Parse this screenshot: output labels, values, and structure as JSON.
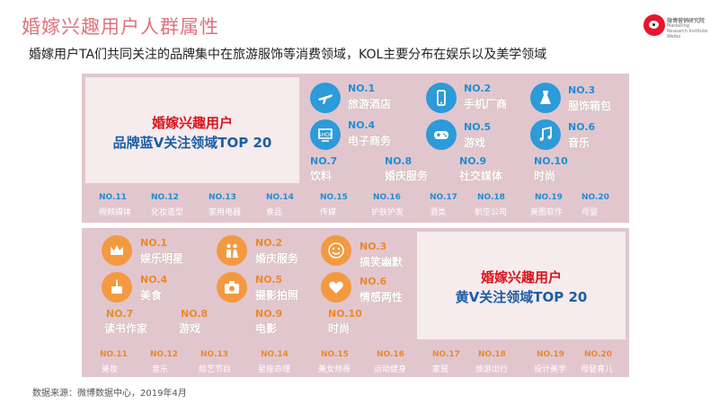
{
  "title": "婚嫁兴趣用户人群属性",
  "subtitle": "婚嫁用户TA们共同关注的品牌集中在旅游服饰等消费领域，KOL主要分布在娱乐以及美学领域",
  "logo": {
    "name": "微博营销研究院",
    "en": "Marketing Research Institute Weibo"
  },
  "blue_section": {
    "heading1": "婚嫁兴趣用户",
    "heading2": "品牌蓝V关注领域TOP 20",
    "top": [
      {
        "no": "NO.1",
        "label": "旅游酒店",
        "icon": "airplane-icon"
      },
      {
        "no": "NO.2",
        "label": "手机厂商",
        "icon": "phone-icon"
      },
      {
        "no": "NO.3",
        "label": "服饰箱包",
        "icon": "dress-icon"
      },
      {
        "no": "NO.4",
        "label": "电子商务",
        "icon": "shop-icon"
      },
      {
        "no": "NO.5",
        "label": "游戏",
        "icon": "gamepad-icon"
      },
      {
        "no": "NO.6",
        "label": "音乐",
        "icon": "music-icon"
      }
    ],
    "mid": [
      {
        "no": "NO.7",
        "label": "饮料"
      },
      {
        "no": "NO.8",
        "label": "婚庆服务"
      },
      {
        "no": "NO.9",
        "label": "社交媒体"
      },
      {
        "no": "NO.10",
        "label": "时尚"
      }
    ],
    "bottom": [
      {
        "no": "NO.11",
        "label": "视频媒体"
      },
      {
        "no": "NO.12",
        "label": "化妆造型"
      },
      {
        "no": "NO.13",
        "label": "家用电器"
      },
      {
        "no": "NO.14",
        "label": "食品"
      },
      {
        "no": "NO.15",
        "label": "传媒"
      },
      {
        "no": "NO.16",
        "label": "护肤护发"
      },
      {
        "no": "NO.17",
        "label": "酒类"
      },
      {
        "no": "NO.18",
        "label": "航空公司"
      },
      {
        "no": "NO.19",
        "label": "美图软件"
      },
      {
        "no": "NO.20",
        "label": "母婴"
      }
    ]
  },
  "yellow_section": {
    "heading1": "婚嫁兴趣用户",
    "heading2": "黄V关注领域TOP 20",
    "top": [
      {
        "no": "NO.1",
        "label": "娱乐明星",
        "icon": "crown-icon"
      },
      {
        "no": "NO.2",
        "label": "婚庆服务",
        "icon": "couple-icon"
      },
      {
        "no": "NO.3",
        "label": "搞笑幽默",
        "icon": "smile-icon"
      },
      {
        "no": "NO.4",
        "label": "美食",
        "icon": "cake-icon"
      },
      {
        "no": "NO.5",
        "label": "摄影拍照",
        "icon": "camera-icon"
      },
      {
        "no": "NO.6",
        "label": "情感两性",
        "icon": "heart-icon"
      }
    ],
    "mid": [
      {
        "no": "NO.7",
        "label": "读书作家"
      },
      {
        "no": "NO.8",
        "label": "游戏"
      },
      {
        "no": "NO.9",
        "label": "电影"
      },
      {
        "no": "NO.10",
        "label": "时尚"
      }
    ],
    "bottom": [
      {
        "no": "NO.11",
        "label": "美妆"
      },
      {
        "no": "NO.12",
        "label": "音乐"
      },
      {
        "no": "NO.13",
        "label": "综艺节目"
      },
      {
        "no": "NO.14",
        "label": "星座命理"
      },
      {
        "no": "NO.15",
        "label": "美女帅哥"
      },
      {
        "no": "NO.16",
        "label": "运动健身"
      },
      {
        "no": "NO.17",
        "label": "家居"
      },
      {
        "no": "NO.18",
        "label": "旅游出行"
      },
      {
        "no": "NO.19",
        "label": "设计美学"
      },
      {
        "no": "NO.20",
        "label": "母婴育儿"
      }
    ]
  },
  "source": "数据来源：微博数据中心，2019年4月",
  "colors": {
    "accent_title": "#e0727d",
    "blue": "#1f8fd4",
    "orange": "#ea8a2a",
    "panel": "#e2c6ce",
    "red": "#d8141c",
    "navy": "#1a5ea5"
  }
}
